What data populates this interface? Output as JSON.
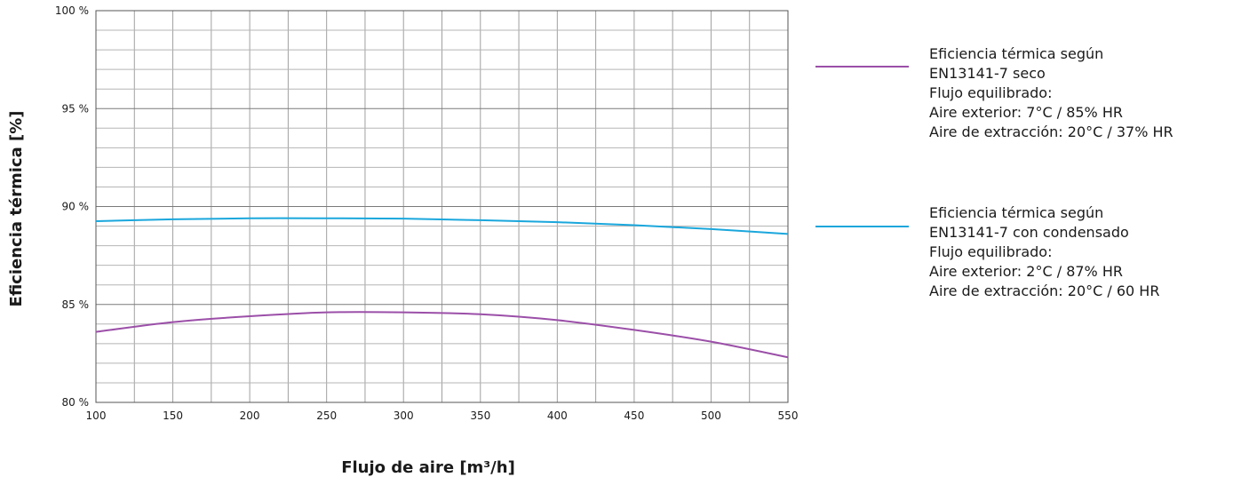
{
  "chart_data": {
    "type": "line",
    "xlabel": "Flujo de aire [m³/h]",
    "ylabel": "Eficiencia térmica [%]",
    "xlim": [
      100,
      550
    ],
    "ylim": [
      80,
      100
    ],
    "x_ticks": [
      100,
      150,
      200,
      250,
      300,
      350,
      400,
      450,
      500,
      550
    ],
    "x_tick_labels": [
      "100",
      "150",
      "200",
      "250",
      "300",
      "350",
      "400",
      "450",
      "500",
      "550"
    ],
    "y_ticks": [
      80,
      85,
      90,
      95,
      100
    ],
    "y_tick_labels": [
      "80 %",
      "85 %",
      "90 %",
      "95 %",
      "100 %"
    ],
    "grid": true,
    "legend_position": "right",
    "series": [
      {
        "name": "Eficiencia térmica según EN13141-7 seco",
        "legend_lines": [
          "Eficiencia térmica según",
          "EN13141-7 seco",
          "Flujo equilibrado:",
          "Aire exterior: 7°C / 85% HR",
          "Aire de extracción: 20°C / 37% HR"
        ],
        "color": "#9b4fa8",
        "x": [
          100,
          150,
          200,
          250,
          300,
          350,
          400,
          450,
          500,
          550
        ],
        "y": [
          83.6,
          84.1,
          84.4,
          84.6,
          84.6,
          84.5,
          84.2,
          83.7,
          83.1,
          82.3
        ]
      },
      {
        "name": "Eficiencia térmica según EN13141-7 con condensado",
        "legend_lines": [
          "Eficiencia térmica según",
          "EN13141-7 con condensado",
          "Flujo equilibrado:",
          "Aire exterior: 2°C / 87% HR",
          "Aire de extracción: 20°C / 60 HR"
        ],
        "color": "#1aa7dc",
        "x": [
          100,
          150,
          200,
          250,
          300,
          350,
          400,
          450,
          500,
          550
        ],
        "y": [
          89.25,
          89.35,
          89.4,
          89.4,
          89.38,
          89.3,
          89.2,
          89.05,
          88.85,
          88.6
        ]
      }
    ]
  }
}
